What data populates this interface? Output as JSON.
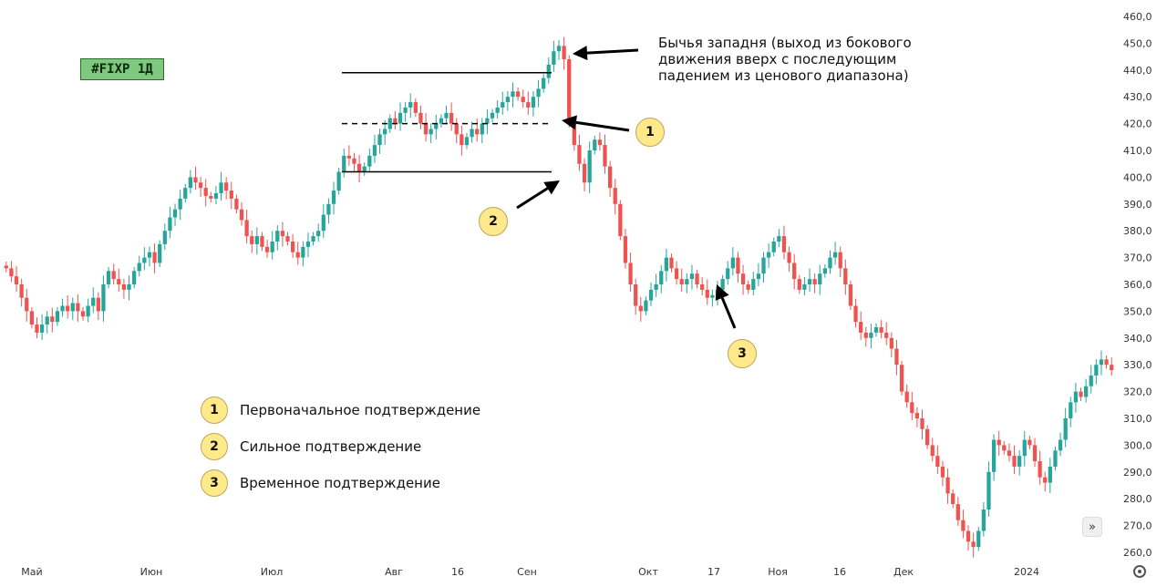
{
  "ticker": "#FIXP 1Д",
  "annotation": "Бычья западня (выход из бокового движения вверх с последующим падением из ценового диапазона)",
  "legend": [
    {
      "num": "1",
      "label": "Первоначальное подтверждение"
    },
    {
      "num": "2",
      "label": "Сильное подтверждение"
    },
    {
      "num": "3",
      "label": "Временное подтверждение"
    }
  ],
  "chart_data": {
    "type": "candlestick",
    "y_ticks": [
      "460,0",
      "450,0",
      "440,0",
      "430,0",
      "420,0",
      "410,0",
      "400,0",
      "390,0",
      "380,0",
      "370,0",
      "360,0",
      "350,0",
      "340,0",
      "330,0",
      "320,0",
      "310,0",
      "300,0",
      "290,0",
      "280,0",
      "270,0",
      "260,0"
    ],
    "x_ticks": [
      "Май",
      "Июн",
      "Июл",
      "Авг",
      "16",
      "Сен",
      "Окт",
      "17",
      "Ноя",
      "16",
      "Дек",
      "2024"
    ],
    "ylim": [
      256,
      462
    ],
    "range_lines": {
      "top": 439,
      "middle": 420,
      "bottom": 402
    },
    "colors": {
      "up": "#26a69a",
      "down": "#ef5350",
      "bg": "#ffffff",
      "axis_text": "#333333"
    },
    "closes": [
      366,
      363,
      360,
      355,
      350,
      345,
      342,
      345,
      348,
      346,
      350,
      352,
      350,
      353,
      350,
      348,
      352,
      355,
      350,
      360,
      365,
      362,
      360,
      358,
      360,
      365,
      368,
      370,
      372,
      368,
      375,
      380,
      385,
      388,
      392,
      396,
      400,
      398,
      396,
      393,
      392,
      394,
      398,
      395,
      392,
      388,
      384,
      378,
      375,
      378,
      374,
      372,
      376,
      380,
      378,
      376,
      372,
      370,
      374,
      376,
      378,
      380,
      386,
      390,
      395,
      402,
      408,
      407,
      405,
      402,
      404,
      408,
      412,
      416,
      418,
      422,
      420,
      424,
      426,
      428,
      424,
      420,
      416,
      418,
      420,
      422,
      424,
      420,
      416,
      412,
      415,
      418,
      416,
      420,
      422,
      424,
      426,
      428,
      430,
      432,
      430,
      428,
      426,
      430,
      433,
      437,
      442,
      447,
      449,
      444,
      420,
      412,
      405,
      398,
      410,
      414,
      412,
      404,
      396,
      390,
      378,
      368,
      360,
      352,
      350,
      354,
      358,
      360,
      365,
      370,
      366,
      362,
      360,
      362,
      364,
      360,
      358,
      355,
      356,
      358,
      362,
      366,
      370,
      364,
      360,
      358,
      362,
      364,
      370,
      372,
      376,
      378,
      372,
      368,
      362,
      358,
      360,
      362,
      360,
      364,
      366,
      370,
      372,
      366,
      360,
      352,
      346,
      342,
      340,
      342,
      344,
      342,
      340,
      336,
      330,
      320,
      316,
      312,
      310,
      306,
      300,
      296,
      292,
      288,
      282,
      278,
      272,
      268,
      264,
      262,
      268,
      276,
      290,
      302,
      300,
      298,
      296,
      292,
      296,
      302,
      300,
      294,
      288,
      286,
      292,
      298,
      302,
      310,
      316,
      320,
      318,
      322,
      326,
      330,
      332,
      330,
      328
    ]
  }
}
